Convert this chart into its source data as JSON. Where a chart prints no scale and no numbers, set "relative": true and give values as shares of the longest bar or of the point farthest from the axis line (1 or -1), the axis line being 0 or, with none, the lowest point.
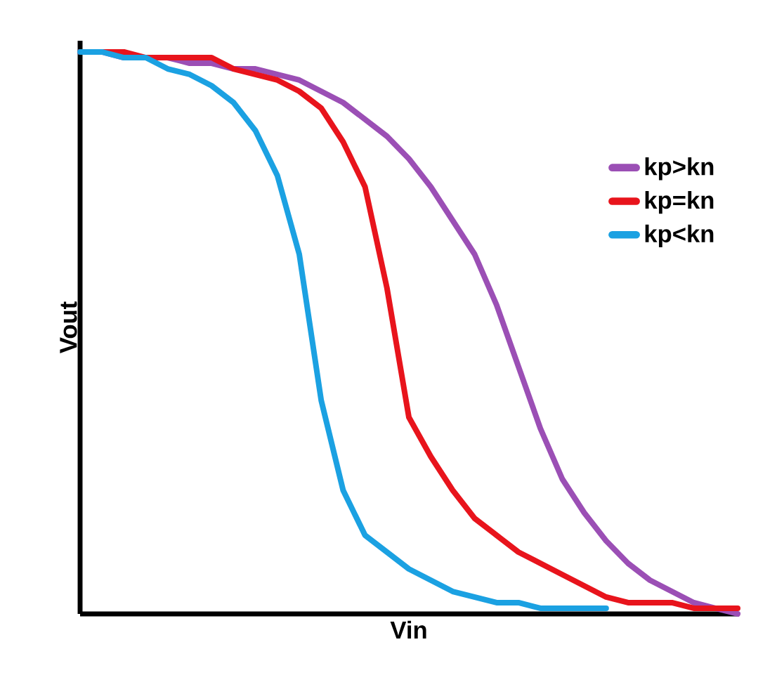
{
  "chart_data": {
    "type": "line",
    "relative": true,
    "xlabel": "Vin",
    "ylabel": "Vout",
    "legend": "right",
    "marker": "none",
    "line_style": "solid",
    "categories": [
      null,
      null,
      null,
      null,
      null,
      null,
      null,
      null,
      null,
      null,
      null,
      null,
      null,
      null,
      null,
      null,
      null,
      null,
      null,
      null,
      null,
      null,
      null,
      null,
      null,
      null,
      null,
      null,
      null,
      null,
      null
    ],
    "series": [
      {
        "name": "kp>kn",
        "color": "#9b4fb5",
        "values": [
          1,
          1,
          0.99,
          0.99,
          0.99,
          0.98,
          0.98,
          0.97,
          0.97,
          0.96,
          0.95,
          0.93,
          0.91,
          0.88,
          0.85,
          0.81,
          0.76,
          0.7,
          0.64,
          0.55,
          0.44,
          0.33,
          0.24,
          0.18,
          0.13,
          0.09,
          0.06,
          0.04,
          0.02,
          0.01,
          0.0
        ]
      },
      {
        "name": "kp=kn",
        "color": "#e8141c",
        "values": [
          1,
          1,
          1,
          0.99,
          0.99,
          0.99,
          0.99,
          0.97,
          0.96,
          0.95,
          0.93,
          0.9,
          0.84,
          0.76,
          0.58,
          0.35,
          0.28,
          0.22,
          0.17,
          0.14,
          0.11,
          0.09,
          0.07,
          0.05,
          0.03,
          0.02,
          0.02,
          0.02,
          0.01,
          0.01,
          0.01
        ]
      },
      {
        "name": "kp<kn",
        "color": "#1ba1e2",
        "values": [
          1,
          1,
          0.99,
          0.99,
          0.97,
          0.96,
          0.94,
          0.91,
          0.86,
          0.78,
          0.64,
          0.38,
          0.22,
          0.14,
          0.11,
          0.08,
          0.06,
          0.04,
          0.03,
          0.02,
          0.02,
          0.01,
          0.01,
          0.01,
          0.01,
          null,
          null,
          null,
          null,
          null,
          null
        ]
      }
    ]
  }
}
